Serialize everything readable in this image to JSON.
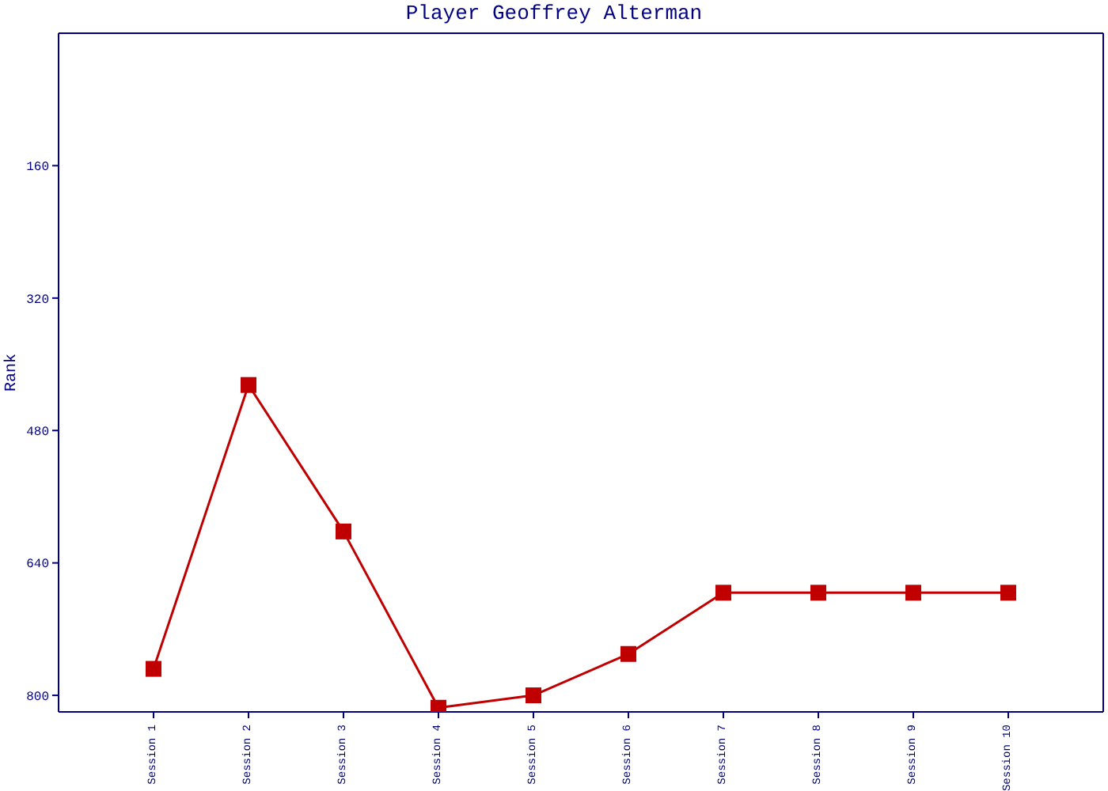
{
  "chart_data": {
    "type": "line",
    "title": "Player Geoffrey Alterman",
    "ylabel": "Rank",
    "categories": [
      "Session 1",
      "Session 2",
      "Session 3",
      "Session 4",
      "Session 5",
      "Session 6",
      "Session 7",
      "Session 8",
      "Session 9",
      "Session 10"
    ],
    "series": [
      {
        "color": "#c00000",
        "values": [
          768,
          425,
          602,
          815,
          800,
          750,
          676,
          676,
          676,
          676
        ]
      }
    ],
    "ylim": [
      820,
      0
    ],
    "yticks": [
      160,
      320,
      480,
      640,
      800
    ],
    "marker": "square",
    "line_style": "solid",
    "grid": false,
    "legend": false
  }
}
